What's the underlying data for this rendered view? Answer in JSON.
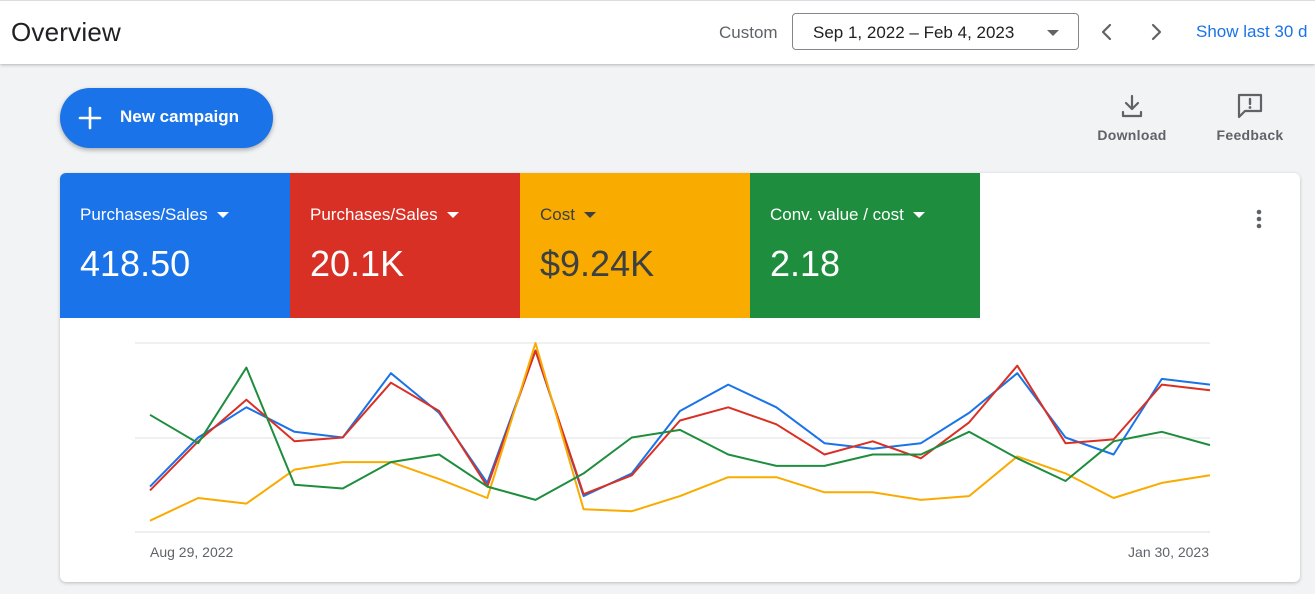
{
  "header": {
    "title": "Overview",
    "custom_label": "Custom",
    "date_range": "Sep 1, 2022 – Feb 4, 2023",
    "show_last": "Show last 30 d",
    "prev_icon": "chevron-left-icon",
    "next_icon": "chevron-right-icon"
  },
  "actions": {
    "new_campaign": "New campaign",
    "download": "Download",
    "feedback": "Feedback"
  },
  "metrics": [
    {
      "name": "Purchases/Sales",
      "value": "418.50",
      "color": "#1a73e8",
      "text_color": "#ffffff"
    },
    {
      "name": "Purchases/Sales",
      "value": "20.1K",
      "color": "#d93025",
      "text_color": "#ffffff"
    },
    {
      "name": "Cost",
      "value": "$9.24K",
      "color": "#f9ab00",
      "text_color": "#3c4043"
    },
    {
      "name": "Conv. value / cost",
      "value": "2.18",
      "color": "#1e8e3e",
      "text_color": "#ffffff"
    }
  ],
  "chart_data": {
    "type": "line",
    "x_start_label": "Aug 29, 2022",
    "x_end_label": "Jan 30, 2023",
    "ylim": [
      0,
      100
    ],
    "grid": true,
    "series": [
      {
        "color": "#1a73e8",
        "values": [
          24,
          50,
          66,
          53,
          50,
          84,
          63,
          26,
          96,
          19,
          31,
          64,
          78,
          66,
          47,
          44,
          47,
          63,
          84,
          50,
          41,
          81,
          78
        ]
      },
      {
        "color": "#d93025",
        "values": [
          22,
          48,
          70,
          48,
          50,
          79,
          64,
          24,
          96,
          20,
          30,
          59,
          66,
          57,
          41,
          48,
          39,
          58,
          88,
          47,
          49,
          78,
          75
        ]
      },
      {
        "color": "#f9ab00",
        "values": [
          6,
          18,
          15,
          33,
          37,
          37,
          28,
          18,
          100,
          12,
          11,
          19,
          29,
          29,
          21,
          21,
          17,
          19,
          40,
          31,
          18,
          26,
          30
        ]
      },
      {
        "color": "#1e8e3e",
        "values": [
          62,
          47,
          87,
          25,
          23,
          37,
          41,
          24,
          17,
          31,
          50,
          54,
          41,
          35,
          35,
          41,
          41,
          53,
          39,
          27,
          48,
          53,
          46
        ]
      }
    ]
  }
}
